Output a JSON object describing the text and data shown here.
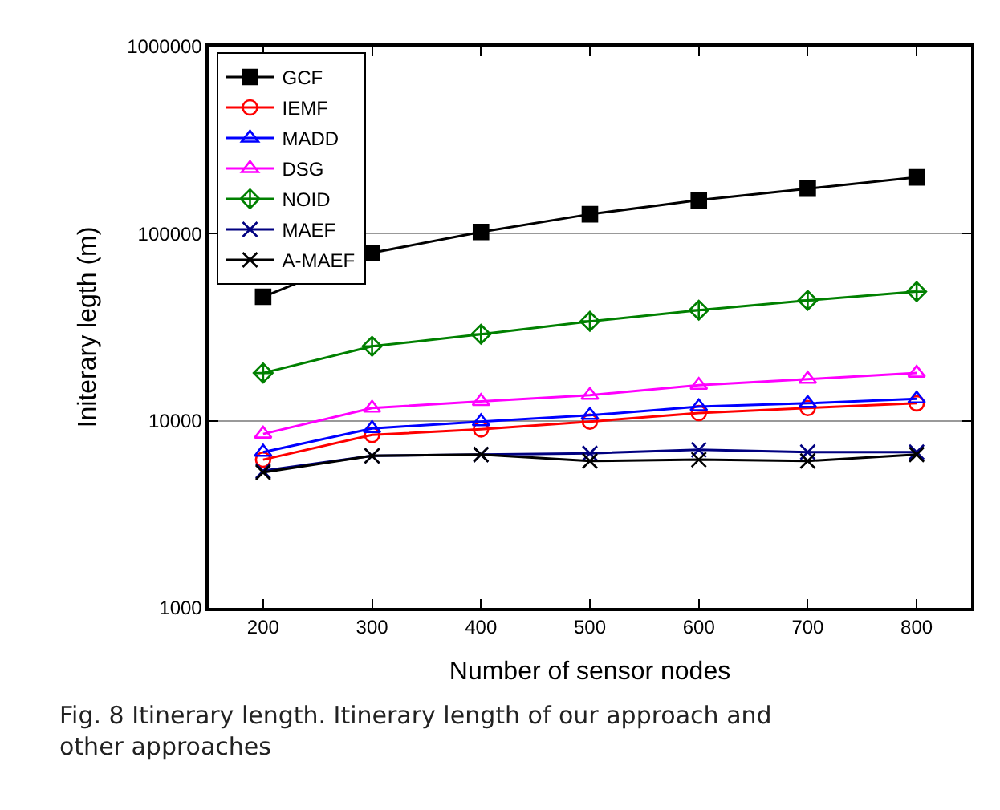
{
  "chart_data": {
    "type": "line",
    "xlabel": "Number of sensor nodes",
    "ylabel": "Initerary legth (m)",
    "x": [
      200,
      300,
      400,
      500,
      600,
      700,
      800
    ],
    "series": [
      {
        "name": "GCF",
        "color": "#000000",
        "marker": "square",
        "values": [
          46000,
          79000,
          102000,
          127000,
          151000,
          174000,
          200000
        ]
      },
      {
        "name": "IEMF",
        "color": "#ff0000",
        "marker": "circle",
        "values": [
          6200,
          8400,
          9000,
          9900,
          11000,
          11700,
          12400
        ]
      },
      {
        "name": "MADD",
        "color": "#0000ff",
        "marker": "triangle",
        "values": [
          6800,
          9100,
          9900,
          10700,
          11900,
          12400,
          13100
        ]
      },
      {
        "name": "DSG",
        "color": "#ff00ff",
        "marker": "triangle",
        "values": [
          8500,
          11700,
          12700,
          13700,
          15500,
          16700,
          18000
        ]
      },
      {
        "name": "NOID",
        "color": "#008000",
        "marker": "diamond",
        "values": [
          18000,
          25000,
          29000,
          34000,
          39000,
          44000,
          49000
        ]
      },
      {
        "name": "MAEF",
        "color": "#000080",
        "marker": "cross",
        "values": [
          5400,
          6500,
          6600,
          6700,
          7000,
          6800,
          6800
        ]
      },
      {
        "name": "A-MAEF",
        "color": "#000000",
        "marker": "cross",
        "values": [
          5300,
          6500,
          6600,
          6100,
          6200,
          6100,
          6600
        ]
      }
    ],
    "xlim": [
      150,
      850
    ],
    "xticks": [
      200,
      300,
      400,
      500,
      600,
      700,
      800
    ],
    "ylim": [
      1000,
      1000000
    ],
    "yticks": [
      1000,
      10000,
      100000,
      1000000
    ],
    "log": "y",
    "grid": "y",
    "legend": "top left",
    "annotations": [
      "Fig. 8 Itinerary length. Itinerary length of our approach and other approaches"
    ]
  }
}
